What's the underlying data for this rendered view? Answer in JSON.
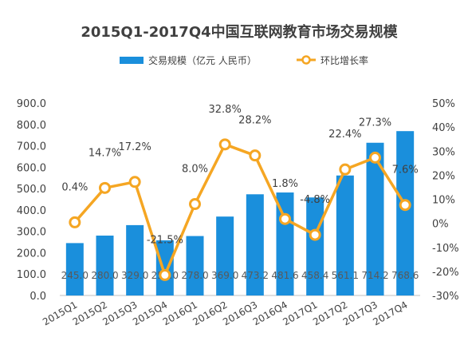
{
  "chart_data": {
    "type": "bar",
    "title": "2015Q1-2017Q4中国互联网教育市场交易规模",
    "categories": [
      "2015Q1",
      "2015Q2",
      "2015Q3",
      "2015Q4",
      "2016Q1",
      "2016Q2",
      "2016Q3",
      "2016Q4",
      "2017Q1",
      "2017Q2",
      "2017Q3",
      "2017Q4"
    ],
    "series": [
      {
        "name": "交易规模（亿元 人民币）",
        "kind": "bar",
        "axis": "left",
        "values": [
          245.0,
          280.0,
          329.0,
          258.0,
          278.0,
          369.0,
          473.2,
          481.6,
          458.4,
          561.1,
          714.2,
          768.6
        ],
        "labels": [
          "245.0",
          "280.0",
          "329.0",
          "258.0",
          "278.0",
          "369.0",
          "473.2",
          "481.6",
          "458.4",
          "561.1",
          "714.2",
          "768.6"
        ]
      },
      {
        "name": "环比增长率",
        "kind": "line",
        "axis": "right",
        "values": [
          0.4,
          14.7,
          17.2,
          -21.5,
          8.0,
          32.8,
          28.2,
          1.8,
          -4.8,
          22.4,
          27.3,
          7.6
        ],
        "labels": [
          "0.4%",
          "14.7%",
          "17.2%",
          "-21.5%",
          "8.0%",
          "32.8%",
          "28.2%",
          "1.8%",
          "-4.8%",
          "22.4%",
          "27.3%",
          "7.6%"
        ]
      }
    ],
    "y_left": {
      "lim": [
        0,
        900
      ],
      "ticks": [
        "0.0",
        "100.0",
        "200.0",
        "300.0",
        "400.0",
        "500.0",
        "600.0",
        "700.0",
        "800.0",
        "900.0"
      ]
    },
    "y_right": {
      "lim": [
        -30,
        50
      ],
      "ticks": [
        "-30%",
        "-20%",
        "-10%",
        "0%",
        "10%",
        "20%",
        "30%",
        "40%",
        "50%"
      ]
    },
    "grid": false,
    "legend_position": "top",
    "colors": {
      "bar": "#1a8fdc",
      "line": "#f5a623",
      "marker_fill": "#ffffff",
      "text": "#404040",
      "axis": "#bfbfbf"
    }
  }
}
